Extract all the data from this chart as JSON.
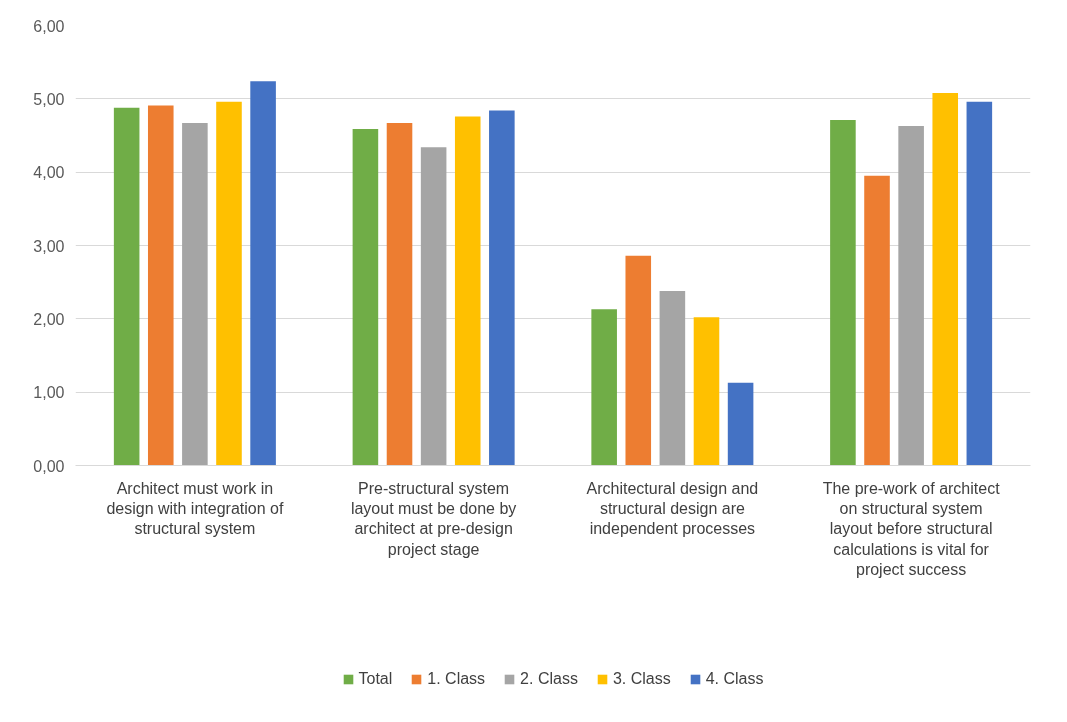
{
  "chart_data": {
    "type": "bar",
    "categories": [
      "Architect must work in design with integration of structural system",
      "Pre-structural system layout must be done by architect at pre-design project stage",
      "Architectural design and structural design are independent processes",
      "The pre-work of architect on structural system layout before structural calculations is vital for project success"
    ],
    "series": [
      {
        "name": "Total",
        "color": "#70ad47",
        "values": [
          4.88,
          4.59,
          2.13,
          4.71
        ]
      },
      {
        "name": "1. Class",
        "color": "#ed7d31",
        "values": [
          4.91,
          4.67,
          2.86,
          3.95
        ]
      },
      {
        "name": "2. Class",
        "color": "#a5a5a5",
        "values": [
          4.67,
          4.34,
          2.38,
          4.63
        ]
      },
      {
        "name": "3. Class",
        "color": "#ffc000",
        "values": [
          4.96,
          4.76,
          2.02,
          5.08
        ]
      },
      {
        "name": "4. Class",
        "color": "#4472c4",
        "values": [
          5.24,
          4.84,
          1.13,
          4.96
        ]
      }
    ],
    "ylim": [
      0,
      6
    ],
    "yticks": [
      {
        "value": 0,
        "label": "0,00"
      },
      {
        "value": 1,
        "label": "1,00"
      },
      {
        "value": 2,
        "label": "2,00"
      },
      {
        "value": 3,
        "label": "3,00"
      },
      {
        "value": 4,
        "label": "4,00"
      },
      {
        "value": 5,
        "label": "5,00"
      },
      {
        "value": 6,
        "label": "6,00"
      }
    ],
    "grid": "y",
    "legend": "bottom"
  }
}
